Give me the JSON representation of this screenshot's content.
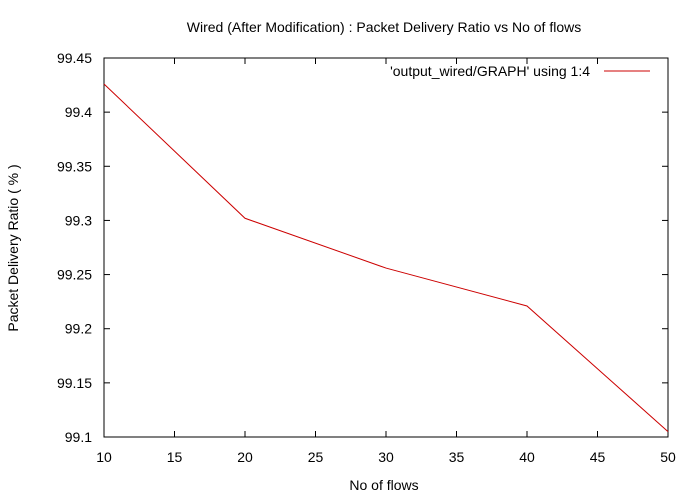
{
  "chart_data": {
    "type": "line",
    "title": "Wired (After Modification) : Packet Delivery Ratio vs No of flows",
    "xlabel": "No of flows",
    "ylabel": "Packet Delivery Ratio ( % )",
    "xlim": [
      10,
      50
    ],
    "ylim": [
      99.1,
      99.45
    ],
    "xticks": [
      10,
      15,
      20,
      25,
      30,
      35,
      40,
      45,
      50
    ],
    "yticks": [
      99.1,
      99.15,
      99.2,
      99.25,
      99.3,
      99.35,
      99.4,
      99.45
    ],
    "ytick_labels": [
      "99.1",
      "99.15",
      "99.2",
      "99.25",
      "99.3",
      "99.35",
      "99.4",
      "99.45"
    ],
    "grid": false,
    "legend_position": "top-right",
    "series": [
      {
        "name": "'output_wired/GRAPH' using 1:4",
        "color": "#cc0000",
        "x": [
          10,
          20,
          30,
          40,
          50
        ],
        "y": [
          99.426,
          99.302,
          99.256,
          99.221,
          99.105
        ]
      }
    ]
  }
}
